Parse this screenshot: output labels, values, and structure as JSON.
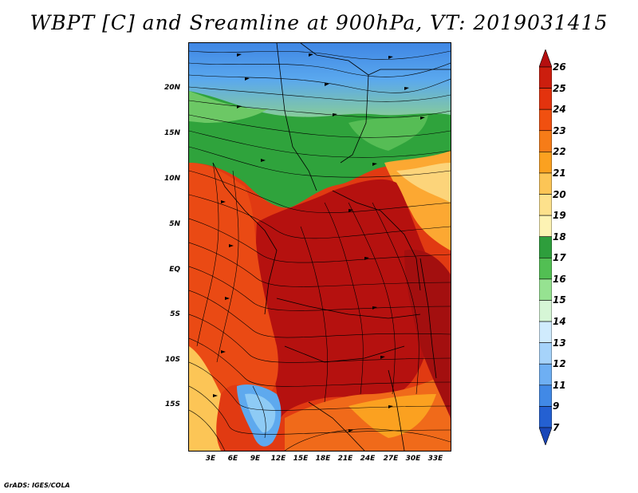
{
  "title": "WBPT [C] and Sreamline at 900hPa, VT: 2019031415",
  "footer": "GrADS: IGES/COLA",
  "map": {
    "lat_labels": [
      "20N",
      "15N",
      "10N",
      "5N",
      "EQ",
      "5S",
      "10S",
      "15S"
    ],
    "lon_labels": [
      "3E",
      "6E",
      "9E",
      "12E",
      "15E",
      "18E",
      "21E",
      "24E",
      "27E",
      "30E",
      "33E"
    ]
  },
  "colorbar": {
    "labels": [
      "26",
      "25",
      "24",
      "23",
      "22",
      "21",
      "20",
      "19",
      "18",
      "17",
      "16",
      "15",
      "14",
      "13",
      "12",
      "11",
      "9",
      "7"
    ],
    "colors": [
      "#b50f0f",
      "#cc1e0e",
      "#e3330e",
      "#f05010",
      "#f67c18",
      "#fba120",
      "#fcc556",
      "#fde18c",
      "#fdf3b4",
      "#2e9e3c",
      "#52bf53",
      "#96e291",
      "#d6f6d6",
      "#d0ebfd",
      "#a6d3fa",
      "#6eaff3",
      "#4189e6",
      "#2460d2",
      "#1a47b8"
    ]
  }
}
